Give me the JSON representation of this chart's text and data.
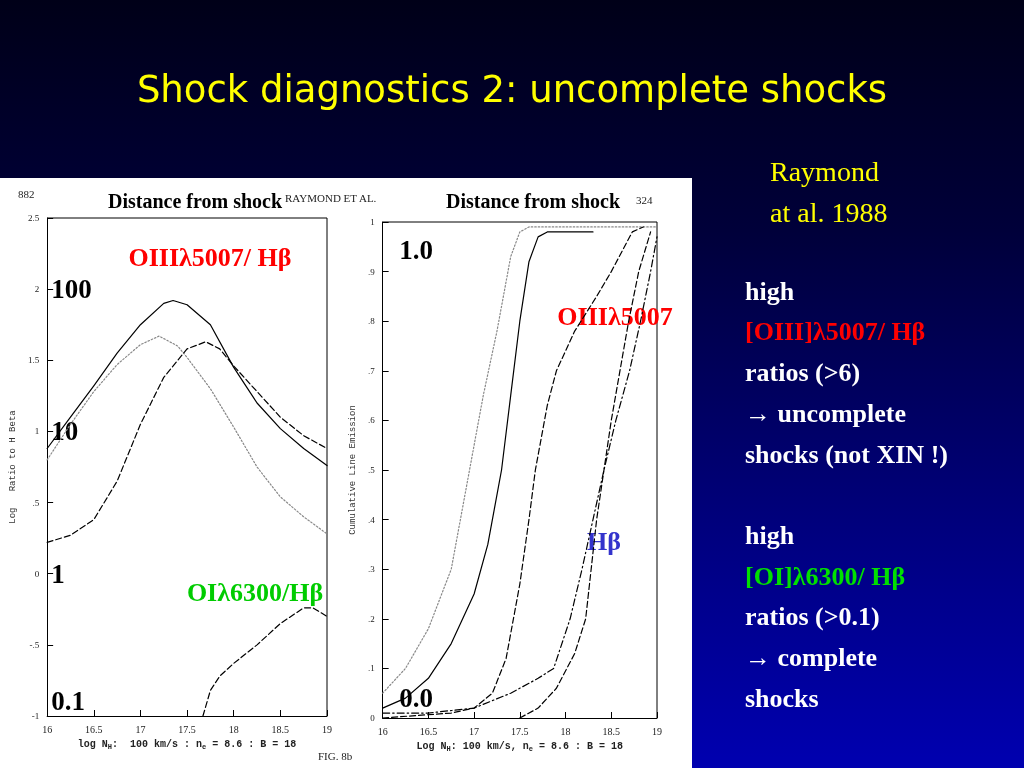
{
  "chart_data": [
    {
      "type": "line",
      "title": "Distance from shock",
      "xlabel": "log N$_{H}$:  100 km/s : n$_{e}$ = 8.6 : B = 18",
      "ylabel": "Log   Ratio to H Beta",
      "xlim": [
        16,
        19
      ],
      "xticks": [
        16,
        16.5,
        17,
        17.5,
        18,
        18.5,
        19
      ],
      "ylim": [
        -1,
        2.5
      ],
      "yticks": [
        -1,
        {
          "value": -0.5,
          "label": "-.5"
        },
        0,
        {
          "value": 0.5,
          "label": ".5"
        },
        1,
        1.5,
        2,
        2.5
      ],
      "y2lim": [
        0.1,
        316.2
      ],
      "y2ticks": [
        0.1,
        1,
        10,
        100
      ],
      "log": "y2",
      "marker": "none",
      "series": [
        {
          "color": "#000000",
          "line_style": "solid",
          "x": [
            16,
            16.25,
            16.5,
            16.75,
            17,
            17.25,
            17.35,
            17.5,
            17.75,
            18,
            18.25,
            18.5,
            18.75,
            19
          ],
          "values": [
            0.88,
            1.1,
            1.32,
            1.55,
            1.75,
            1.9,
            1.92,
            1.89,
            1.75,
            1.45,
            1.2,
            1.02,
            0.88,
            0.76
          ]
        },
        {
          "color": "#888888",
          "line_style": "dotted",
          "x": [
            16,
            16.25,
            16.5,
            16.75,
            17,
            17.2,
            17.4,
            17.5,
            17.75,
            18,
            18.25,
            18.5,
            18.75,
            19
          ],
          "values": [
            0.8,
            1.05,
            1.28,
            1.47,
            1.61,
            1.67,
            1.6,
            1.52,
            1.3,
            1.03,
            0.75,
            0.54,
            0.4,
            0.28
          ]
        },
        {
          "color": "#000000",
          "line_style": "dashed",
          "x": [
            16,
            16.25,
            16.5,
            16.75,
            17,
            17.25,
            17.5,
            17.7,
            17.85,
            18,
            18.25,
            18.5,
            18.75,
            19
          ],
          "values": [
            0.22,
            0.27,
            0.38,
            0.65,
            1.05,
            1.38,
            1.58,
            1.63,
            1.58,
            1.46,
            1.28,
            1.1,
            0.97,
            0.88
          ]
        },
        {
          "color": "#000000",
          "line_style": "dashed",
          "x": [
            17.67,
            17.75,
            17.85,
            18,
            18.25,
            18.5,
            18.75,
            18.85,
            19
          ],
          "values": [
            -1,
            -0.82,
            -0.72,
            -0.63,
            -0.5,
            -0.35,
            -0.24,
            -0.24,
            -0.3
          ]
        }
      ],
      "annotations": [
        "882",
        "RAYMOND ET AL.",
        "FIG. 8b",
        "OIIIλ5007/ Hβ",
        "OIλ6300/Hβ"
      ]
    },
    {
      "type": "line",
      "title": "Distance from shock",
      "xlabel": "Log N$_{H}$: 100 km/s, n$_{e}$ = 8.6 : B = 18",
      "ylabel": "Cumulative Line Emission",
      "xlim": [
        16,
        19
      ],
      "xticks": [
        16,
        16.5,
        17,
        17.5,
        18,
        18.5,
        19
      ],
      "ylim": [
        0,
        1
      ],
      "yticks": [
        0,
        {
          "value": 0.1,
          "label": ".1"
        },
        {
          "value": 0.2,
          "label": ".2"
        },
        {
          "value": 0.3,
          "label": ".3"
        },
        {
          "value": 0.4,
          "label": ".4"
        },
        {
          "value": 0.5,
          "label": ".5"
        },
        {
          "value": 0.6,
          "label": ".6"
        },
        {
          "value": 0.7,
          "label": ".7"
        },
        {
          "value": 0.8,
          "label": ".8"
        },
        {
          "value": 0.9,
          "label": ".9"
        },
        1
      ],
      "marker": "none",
      "series": [
        {
          "color": "#888888",
          "line_style": "dotted",
          "x": [
            16,
            16.25,
            16.5,
            16.75,
            16.95,
            17.1,
            17.25,
            17.4,
            17.5,
            17.6,
            19
          ],
          "values": [
            0.05,
            0.1,
            0.18,
            0.3,
            0.5,
            0.65,
            0.78,
            0.93,
            0.98,
            0.99,
            0.99
          ]
        },
        {
          "color": "#000000",
          "line_style": "solid",
          "x": [
            16,
            16.25,
            16.5,
            16.75,
            17,
            17.15,
            17.3,
            17.4,
            17.5,
            17.6,
            17.7,
            17.8,
            18.3
          ],
          "values": [
            0.02,
            0.04,
            0.08,
            0.15,
            0.25,
            0.35,
            0.5,
            0.65,
            0.8,
            0.92,
            0.97,
            0.98,
            0.98
          ]
        },
        {
          "color": "#000000",
          "line_style": "dashed",
          "x": [
            16,
            16.75,
            17,
            17.2,
            17.35,
            17.5,
            17.6,
            17.67,
            17.8,
            17.9,
            18.1,
            18.34,
            18.5,
            18.73,
            18.85
          ],
          "values": [
            0,
            0.01,
            0.02,
            0.05,
            0.12,
            0.27,
            0.4,
            0.5,
            0.63,
            0.7,
            0.78,
            0.85,
            0.9,
            0.98,
            0.99
          ]
        },
        {
          "color": "#000000",
          "line_style": "dashed",
          "x": [
            17.5,
            17.7,
            17.9,
            18.1,
            18.22,
            18.34,
            18.5,
            18.69,
            18.8,
            18.93
          ],
          "values": [
            0,
            0.02,
            0.06,
            0.13,
            0.2,
            0.4,
            0.6,
            0.8,
            0.9,
            0.98
          ]
        },
        {
          "color": "#000000",
          "line_style": "dashdot",
          "x": [
            16,
            16.5,
            17,
            17.4,
            17.7,
            17.87,
            18.05,
            18.18,
            18.3,
            18.42,
            18.55,
            18.7,
            18.82,
            18.93,
            19
          ],
          "values": [
            0.01,
            0.01,
            0.02,
            0.05,
            0.08,
            0.1,
            0.2,
            0.3,
            0.4,
            0.5,
            0.6,
            0.7,
            0.8,
            0.9,
            0.97
          ]
        }
      ],
      "annotations": [
        "324",
        "OIIIλ5007",
        "Hβ",
        "1.0",
        "0.0"
      ]
    },
    {
      "type": "other",
      "title": "Shock diagnostics 2: uncomplete shocks",
      "annotations": [
        "Raymond",
        "at al. 1988",
        "high",
        "[OIII]λ5007/ Hβ",
        "ratios (>6)",
        "→ uncomplete",
        "shocks (not XIN !)",
        "high",
        "[OI]λ6300/ Hβ",
        "ratios (>0.1)",
        "→ complete",
        "shocks"
      ]
    }
  ]
}
